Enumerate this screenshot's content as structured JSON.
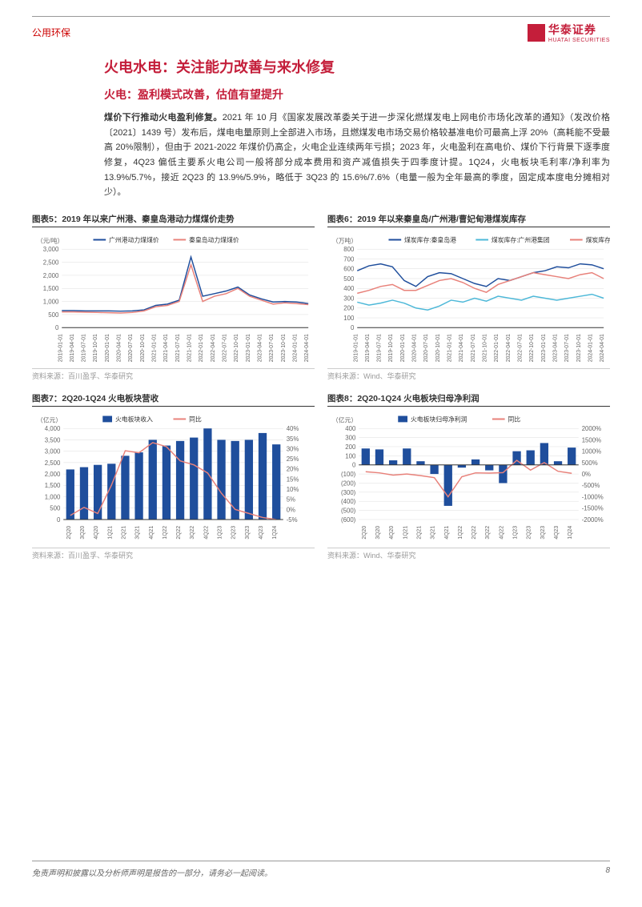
{
  "header": {
    "category": "公用环保",
    "company": "华泰证券",
    "company_en": "HUATAI SECURITIES"
  },
  "titles": {
    "main": "火电水电：关注能力改善与来水修复",
    "sub": "火电：盈利模式改善，估值有望提升"
  },
  "body": {
    "lead": "煤价下行推动火电盈利修复。",
    "text": "2021 年 10 月《国家发展改革委关于进一步深化燃煤发电上网电价市场化改革的通知》（发改价格〔2021〕1439 号）发布后，煤电电量原则上全部进入市场，且燃煤发电市场交易价格较基准电价可最高上浮 20%（高耗能不受最高 20%限制），但由于 2021-2022 年煤价仍高企，火电企业连续两年亏损；2023 年，火电盈利在高电价、煤价下行背景下逐季度修复，4Q23 偏低主要系火电公司一般将部分成本费用和资产减值损失于四季度计提。1Q24，火电板块毛利率/净利率为 13.9%/5.7%，接近 2Q23 的 13.9%/5.9%，略低于 3Q23 的 15.6%/7.6%（电量一般为全年最高的季度，固定成本度电分摊相对少）。"
  },
  "chart5": {
    "title": "图表5：2019 年以来广州港、秦皇岛港动力煤煤价走势",
    "ylabel": "（元/吨）",
    "legend": [
      "广州港动力煤煤价",
      "秦皇岛动力煤煤价"
    ],
    "colors": [
      "#1f4e9c",
      "#e8817a"
    ],
    "ylim": [
      0,
      3000
    ],
    "ytick_step": 500,
    "xlabels": [
      "2019-01-01",
      "2019-04-01",
      "2019-07-01",
      "2019-10-01",
      "2020-01-01",
      "2020-04-01",
      "2020-07-01",
      "2020-10-01",
      "2021-01-01",
      "2021-04-01",
      "2021-07-01",
      "2021-10-01",
      "2022-01-01",
      "2022-04-01",
      "2022-07-01",
      "2022-10-01",
      "2023-01-01",
      "2023-04-01",
      "2023-07-01",
      "2023-10-01",
      "2024-01-01",
      "2024-04-01"
    ],
    "series1": [
      650,
      650,
      640,
      640,
      640,
      630,
      640,
      680,
      850,
      900,
      1050,
      2700,
      1200,
      1300,
      1400,
      1550,
      1250,
      1100,
      980,
      1000,
      980,
      920
    ],
    "series2": [
      600,
      600,
      590,
      580,
      570,
      560,
      580,
      640,
      800,
      850,
      1000,
      2400,
      1000,
      1200,
      1300,
      1500,
      1200,
      1050,
      900,
      950,
      920,
      880
    ],
    "source": "资料来源：百川盈孚、华泰研究"
  },
  "chart6": {
    "title": "图表6：2019 年以来秦皇岛/广州港/曹妃甸港煤炭库存",
    "ylabel": "（万吨）",
    "legend": [
      "煤炭库存:秦皇岛港",
      "煤炭库存:广州港集团",
      "煤炭库存:曹妃甸港"
    ],
    "colors": [
      "#1f4e9c",
      "#4db8d8",
      "#e8817a"
    ],
    "ylim": [
      0,
      800
    ],
    "ytick_step": 100,
    "xlabels": [
      "2019-01-01",
      "2019-04-01",
      "2019-07-01",
      "2019-10-01",
      "2020-01-01",
      "2020-04-01",
      "2020-07-01",
      "2020-10-01",
      "2021-01-01",
      "2021-04-01",
      "2021-07-01",
      "2021-10-01",
      "2022-01-01",
      "2022-04-01",
      "2022-07-01",
      "2022-10-01",
      "2023-01-01",
      "2023-04-01",
      "2023-07-01",
      "2023-10-01",
      "2024-01-01",
      "2024-04-01"
    ],
    "series1": [
      580,
      630,
      650,
      620,
      480,
      420,
      520,
      560,
      550,
      500,
      450,
      420,
      500,
      480,
      520,
      560,
      580,
      620,
      610,
      650,
      640,
      600
    ],
    "series2": [
      260,
      230,
      250,
      280,
      250,
      200,
      180,
      220,
      280,
      260,
      300,
      270,
      320,
      300,
      280,
      320,
      300,
      280,
      300,
      320,
      340,
      300
    ],
    "series3": [
      350,
      380,
      420,
      440,
      380,
      380,
      430,
      480,
      500,
      460,
      400,
      360,
      440,
      480,
      520,
      560,
      540,
      520,
      500,
      540,
      560,
      500
    ],
    "source": "资料来源：Wind、华泰研究"
  },
  "chart7": {
    "title": "图表7：2Q20-1Q24 火电板块营收",
    "ylabel": "（亿元）",
    "legend": [
      "火电板块收入",
      "同比"
    ],
    "colors": [
      "#1f4e9c",
      "#e8817a"
    ],
    "ylim_left": [
      0,
      4000
    ],
    "ytick_left": 500,
    "ylim_right": [
      -5,
      40
    ],
    "yticks_right": [
      "-5%",
      "0%",
      "5%",
      "10%",
      "15%",
      "20%",
      "25%",
      "30%",
      "35%",
      "40%"
    ],
    "xlabels": [
      "2Q20",
      "3Q20",
      "4Q20",
      "1Q21",
      "2Q21",
      "3Q21",
      "4Q21",
      "1Q22",
      "2Q22",
      "3Q22",
      "4Q22",
      "1Q23",
      "2Q23",
      "3Q23",
      "4Q23",
      "1Q24"
    ],
    "bars": [
      2200,
      2300,
      2400,
      2450,
      2800,
      2950,
      3500,
      3250,
      3450,
      3600,
      4000,
      3500,
      3450,
      3500,
      3800,
      3300
    ],
    "line": [
      -3,
      1,
      -2,
      12,
      29,
      28,
      33,
      31,
      24,
      22,
      18,
      8,
      0,
      -2,
      -4,
      -5
    ],
    "source": "资料来源：百川盈孚、华泰研究"
  },
  "chart8": {
    "title": "图表8：2Q20-1Q24 火电板块归母净利润",
    "ylabel": "（亿元）",
    "legend": [
      "火电板块归母净利润",
      "同比"
    ],
    "colors": [
      "#1f4e9c",
      "#e8817a"
    ],
    "ylim_left": [
      -600,
      400
    ],
    "ytick_left": 100,
    "ylim_right": [
      -2000,
      2000
    ],
    "yticks_right": [
      "-2000%",
      "-1500%",
      "-1000%",
      "-500%",
      "0%",
      "500%",
      "1000%",
      "1500%",
      "2000%"
    ],
    "xlabels": [
      "2Q20",
      "3Q20",
      "4Q20",
      "1Q21",
      "2Q21",
      "3Q21",
      "4Q21",
      "1Q22",
      "2Q22",
      "3Q22",
      "4Q22",
      "1Q23",
      "2Q23",
      "3Q23",
      "4Q23",
      "1Q24"
    ],
    "bars": [
      180,
      170,
      50,
      180,
      40,
      -100,
      -450,
      -30,
      60,
      -60,
      -200,
      150,
      160,
      240,
      40,
      190
    ],
    "line": [
      100,
      50,
      -50,
      0,
      -70,
      -160,
      -1000,
      -120,
      50,
      40,
      60,
      600,
      170,
      500,
      120,
      30
    ],
    "source": "资料来源：Wind、华泰研究"
  },
  "footer": {
    "disclaimer": "免责声明和披露以及分析师声明是报告的一部分，请务必一起阅读。",
    "page": "8"
  }
}
